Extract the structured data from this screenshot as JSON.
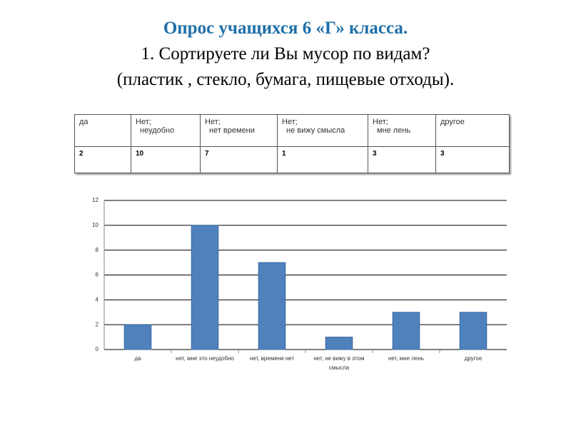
{
  "title": [
    "Опрос учащихся 6 «Г» класса.",
    "1. Сортируете ли Вы мусор по видам?",
    "(пластик , стекло, бумага, пищевые отходы)."
  ],
  "table": {
    "header": [
      [
        "да"
      ],
      [
        "Нет;",
        "неудобно"
      ],
      [
        "Нет;",
        "нет времени"
      ],
      [
        "Нет;",
        "не вижу смысла"
      ],
      [
        "Нет;",
        "мне лень"
      ],
      [
        "другое"
      ]
    ],
    "rows": [
      [
        2,
        10,
        7,
        1,
        3,
        3
      ]
    ]
  },
  "chart_data": {
    "type": "bar",
    "categories": [
      "да",
      "нет, мне это неудобно",
      "нет, времени нет",
      "нет, не вижу в этом смысла",
      "нет, мне лень",
      "другое"
    ],
    "values": [
      2,
      10,
      7,
      1,
      3,
      3
    ],
    "color": "#4f81bd",
    "ylim": [
      0,
      12
    ],
    "yticks": [
      0,
      2,
      4,
      6,
      8,
      10,
      12
    ],
    "grid": true
  }
}
